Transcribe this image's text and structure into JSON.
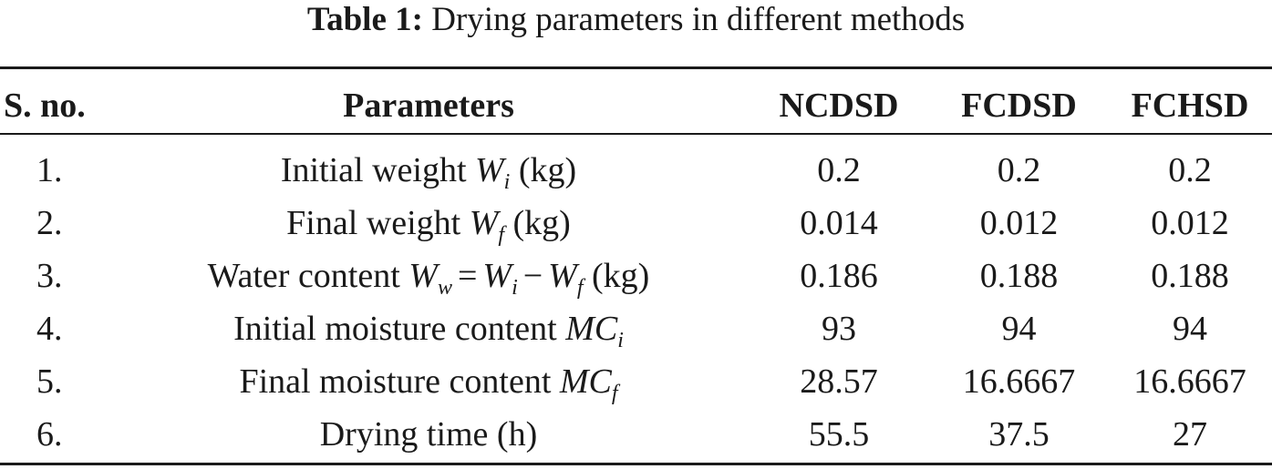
{
  "caption": {
    "label": "Table 1:",
    "text": "Drying parameters in different methods"
  },
  "headers": {
    "sno": "S. no.",
    "parameters": "Parameters",
    "m1": "NCDSD",
    "m2": "FCDSD",
    "m3": "FCHSD"
  },
  "rows": [
    {
      "sno": "1.",
      "param": {
        "pre": "Initial weight ",
        "sym": "W",
        "sub": "i",
        "post": " (kg)"
      },
      "m1": "0.2",
      "m2": "0.2",
      "m3": "0.2"
    },
    {
      "sno": "2.",
      "param": {
        "pre": "Final weight ",
        "sym": "W",
        "sub": "f",
        "post": " (kg)"
      },
      "m1": "0.014",
      "m2": "0.012",
      "m3": "0.012"
    },
    {
      "sno": "3.",
      "param": {
        "pre": "Water content ",
        "sym": "W",
        "sub": "w",
        "eq": "=",
        "sym2": "W",
        "sub2": "i",
        "minus": "−",
        "sym3": "W",
        "sub3": "f",
        "post": " (kg)"
      },
      "m1": "0.186",
      "m2": "0.188",
      "m3": "0.188"
    },
    {
      "sno": "4.",
      "param": {
        "pre": "Initial moisture content ",
        "sym": "MC",
        "sub": "i",
        "post": ""
      },
      "m1": "93",
      "m2": "94",
      "m3": "94"
    },
    {
      "sno": "5.",
      "param": {
        "pre": "Final moisture content ",
        "sym": "MC",
        "sub": "f",
        "post": ""
      },
      "m1": "28.57",
      "m2": "16.6667",
      "m3": "16.6667"
    },
    {
      "sno": "6.",
      "param": {
        "pre": "Drying time (h)"
      },
      "m1": "55.5",
      "m2": "37.5",
      "m3": "27"
    }
  ]
}
